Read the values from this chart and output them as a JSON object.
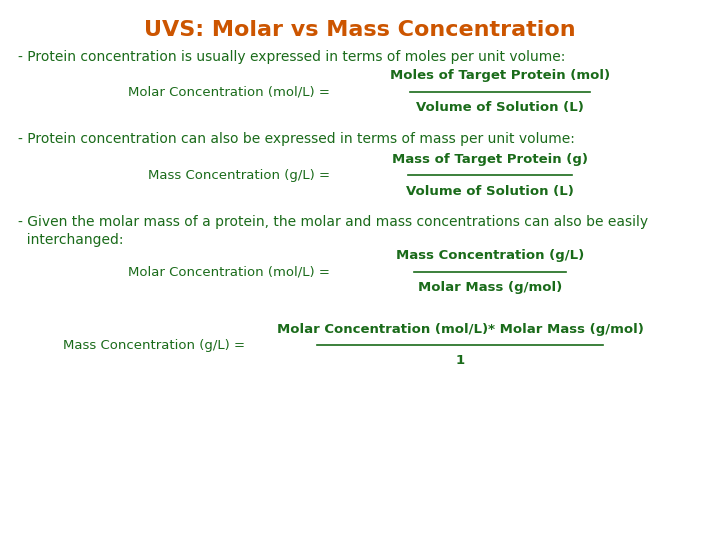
{
  "title": "UVS: Molar vs Mass Concentration",
  "title_color": "#CC5500",
  "body_color": "#1a6b1a",
  "bg_color": "#ffffff",
  "bullet1": "- Protein concentration is usually expressed in terms of moles per unit volume:",
  "bullet2": "- Protein concentration can also be expressed in terms of mass per unit volume:",
  "bullet3_line1": "- Given the molar mass of a protein, the molar and mass concentrations can also be easily",
  "bullet3_line2": "  interchanged:",
  "f1_lhs": "Molar Concentration (mol/L) =",
  "f1_num": "Moles of Target Protein (mol)",
  "f1_den": "Volume of Solution (L)",
  "f2_lhs": "Mass Concentration (g/L) =",
  "f2_num": "Mass of Target Protein (g)",
  "f2_den": "Volume of Solution (L)",
  "f3a_lhs": "Molar Concentration (mol/L) =",
  "f3a_num": "Mass Concentration (g/L)",
  "f3a_den": "Molar Mass (g/mol)",
  "f3b_lhs": "Mass Concentration (g/L) =",
  "f3b_num": "Molar Concentration (mol/L)* Molar Mass (g/mol)",
  "f3b_den": "1",
  "title_fontsize": 16,
  "body_fontsize": 10,
  "formula_fontsize": 9.5
}
